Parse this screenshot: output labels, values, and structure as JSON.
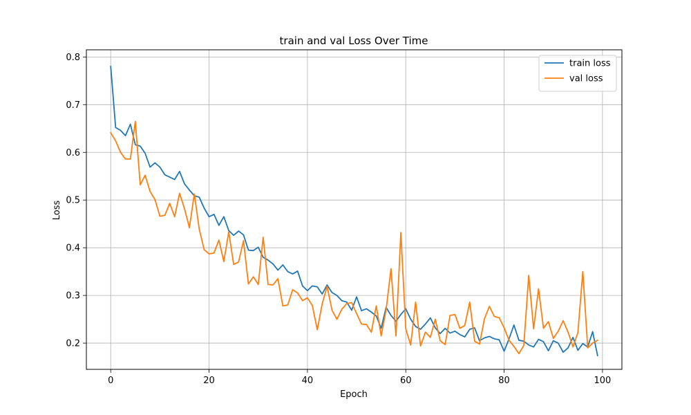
{
  "chart_data": {
    "type": "line",
    "title": "train and val Loss Over Time",
    "xlabel": "Epoch",
    "ylabel": "Loss",
    "xlim": [
      -4.95,
      103.95
    ],
    "ylim": [
      0.145,
      0.815
    ],
    "xticks": [
      0,
      20,
      40,
      60,
      80,
      100
    ],
    "yticks": [
      0.2,
      0.3,
      0.4,
      0.5,
      0.6,
      0.7,
      0.8
    ],
    "grid": true,
    "legend_position": "top-right",
    "x": [
      0,
      1,
      2,
      3,
      4,
      5,
      6,
      7,
      8,
      9,
      10,
      11,
      12,
      13,
      14,
      15,
      16,
      17,
      18,
      19,
      20,
      21,
      22,
      23,
      24,
      25,
      26,
      27,
      28,
      29,
      30,
      31,
      32,
      33,
      34,
      35,
      36,
      37,
      38,
      39,
      40,
      41,
      42,
      43,
      44,
      45,
      46,
      47,
      48,
      49,
      50,
      51,
      52,
      53,
      54,
      55,
      56,
      57,
      58,
      59,
      60,
      61,
      62,
      63,
      64,
      65,
      66,
      67,
      68,
      69,
      70,
      71,
      72,
      73,
      74,
      75,
      76,
      77,
      78,
      79,
      80,
      81,
      82,
      83,
      84,
      85,
      86,
      87,
      88,
      89,
      90,
      91,
      92,
      93,
      94,
      95,
      96,
      97,
      98,
      99
    ],
    "series": [
      {
        "name": "train loss",
        "color": "#1f77b4",
        "values": [
          0.78,
          0.652,
          0.646,
          0.635,
          0.659,
          0.616,
          0.613,
          0.598,
          0.569,
          0.578,
          0.569,
          0.553,
          0.548,
          0.543,
          0.56,
          0.534,
          0.521,
          0.509,
          0.506,
          0.483,
          0.465,
          0.47,
          0.447,
          0.465,
          0.436,
          0.426,
          0.435,
          0.427,
          0.395,
          0.394,
          0.401,
          0.38,
          0.374,
          0.366,
          0.353,
          0.364,
          0.35,
          0.345,
          0.351,
          0.32,
          0.31,
          0.32,
          0.318,
          0.303,
          0.322,
          0.306,
          0.3,
          0.289,
          0.286,
          0.269,
          0.297,
          0.268,
          0.272,
          0.265,
          0.257,
          0.231,
          0.275,
          0.258,
          0.246,
          0.26,
          0.272,
          0.25,
          0.235,
          0.229,
          0.24,
          0.253,
          0.232,
          0.22,
          0.231,
          0.221,
          0.225,
          0.218,
          0.213,
          0.229,
          0.232,
          0.205,
          0.211,
          0.214,
          0.209,
          0.207,
          0.183,
          0.209,
          0.238,
          0.206,
          0.204,
          0.196,
          0.192,
          0.208,
          0.203,
          0.184,
          0.205,
          0.2,
          0.181,
          0.19,
          0.212,
          0.185,
          0.199,
          0.192,
          0.224,
          0.174
        ]
      },
      {
        "name": "val loss",
        "color": "#ff7f0e",
        "values": [
          0.641,
          0.624,
          0.6,
          0.586,
          0.586,
          0.665,
          0.532,
          0.552,
          0.518,
          0.501,
          0.466,
          0.468,
          0.493,
          0.465,
          0.514,
          0.482,
          0.442,
          0.513,
          0.439,
          0.396,
          0.387,
          0.389,
          0.416,
          0.371,
          0.433,
          0.365,
          0.37,
          0.415,
          0.324,
          0.339,
          0.323,
          0.422,
          0.323,
          0.322,
          0.335,
          0.278,
          0.28,
          0.312,
          0.305,
          0.289,
          0.295,
          0.279,
          0.228,
          0.282,
          0.319,
          0.269,
          0.25,
          0.271,
          0.283,
          0.285,
          0.262,
          0.24,
          0.239,
          0.223,
          0.278,
          0.215,
          0.27,
          0.356,
          0.215,
          0.432,
          0.23,
          0.196,
          0.286,
          0.194,
          0.223,
          0.212,
          0.25,
          0.205,
          0.197,
          0.258,
          0.26,
          0.231,
          0.237,
          0.286,
          0.204,
          0.198,
          0.251,
          0.277,
          0.256,
          0.253,
          0.232,
          0.206,
          0.193,
          0.178,
          0.195,
          0.342,
          0.23,
          0.314,
          0.231,
          0.245,
          0.21,
          0.225,
          0.247,
          0.223,
          0.192,
          0.222,
          0.35,
          0.19,
          0.2,
          0.206
        ]
      }
    ]
  }
}
